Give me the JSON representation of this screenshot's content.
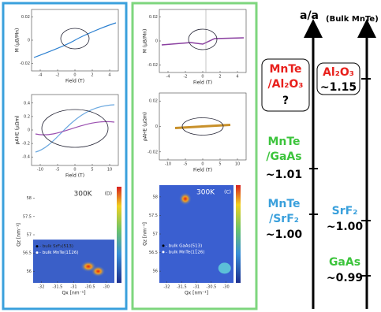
{
  "left": {
    "plots": [
      {
        "ylabel": "M (μB/Mn)",
        "xlabel": "Field (T)",
        "yticks": [
          0.02,
          0,
          -0.02
        ],
        "xticks": [
          -4,
          -2,
          0,
          2,
          4
        ]
      },
      {
        "ylabel": "ρAHE (μΩm)",
        "xlabel": "Field (T)",
        "yticks": [
          0.4,
          0.2,
          0,
          -0.2,
          -0.4
        ],
        "xticks": [
          -10,
          -5,
          0,
          5,
          10
        ]
      }
    ],
    "map": {
      "temp": "300K",
      "panel": "(D)",
      "ylabel": "Qz [nm⁻¹]",
      "xlabel": "Qx [nm⁻¹]",
      "yticks": [
        58,
        57.5,
        57,
        56.5,
        56
      ],
      "xticks": [
        -32,
        -31.5,
        -31,
        -30.5,
        -30
      ],
      "legend": [
        "- bulk SrF₂(513)",
        "- bulk MnTe(11̄26)"
      ]
    }
  },
  "middle": {
    "plots": [
      {
        "ylabel": "M (μB/Mn)",
        "xlabel": "Field (T)",
        "yticks": [
          0.02,
          0,
          -0.02
        ],
        "xticks": [
          -4,
          -2,
          0,
          2,
          4
        ]
      },
      {
        "ylabel": "ρAHE (μΩm)",
        "xlabel": "Field (T)",
        "yticks": [
          0.02,
          0,
          -0.02
        ],
        "xticks": [
          -10,
          -5,
          0,
          5,
          10
        ]
      }
    ],
    "map": {
      "temp": "300K",
      "panel": "(C)",
      "ylabel": "Qz [nm⁻¹]",
      "xlabel": "Qx [nm⁻¹]",
      "yticks": [
        58,
        57.5,
        57,
        56.5,
        56
      ],
      "xticks": [
        -32,
        -31.5,
        -31,
        -30.5,
        -30
      ],
      "legend": [
        "- bulk GaAs(513)",
        "- bulk MnTe(11̄26)"
      ]
    }
  },
  "right": {
    "title": "a/a",
    "title_sub": "(Bulk MnTe)",
    "films": [
      {
        "lines": [
          "MnTe",
          "/Al₂O₃"
        ],
        "ratio": "?"
      },
      {
        "lines": [
          "MnTe",
          "/GaAs"
        ],
        "ratio": "~1.01"
      },
      {
        "lines": [
          "MnTe",
          "/SrF₂"
        ],
        "ratio": "~1.00"
      }
    ],
    "substrates": [
      {
        "name": "Al₂O₃",
        "ratio": "~1.15"
      },
      {
        "name": "SrF₂",
        "ratio": "~1.00"
      },
      {
        "name": "GaAs",
        "ratio": "~0.99"
      }
    ]
  }
}
